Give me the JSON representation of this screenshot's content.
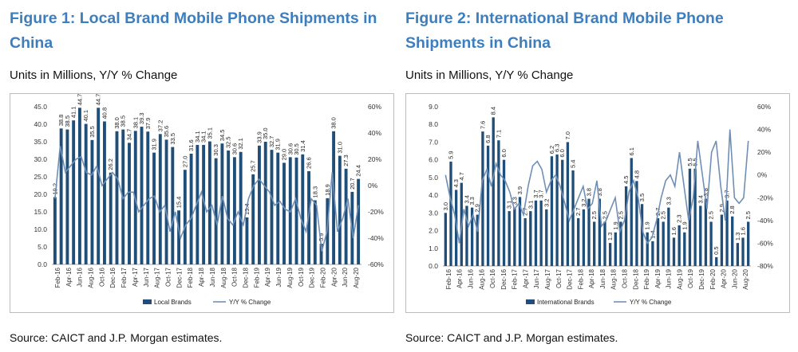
{
  "charts": [
    {
      "title": "Figure 1: Local Brand Mobile Phone Shipments in China",
      "subtitle": "Units in Millions, Y/Y % Change",
      "source": "Source: CAICT and J.P. Morgan estimates.",
      "chart_data": {
        "type": "bar",
        "x_tick_labels": [
          "Feb-16",
          "Apr-16",
          "Jun-16",
          "Aug-16",
          "Oct-16",
          "Dec-16",
          "Feb-17",
          "Apr-17",
          "Jun-17",
          "Aug-17",
          "Oct-17",
          "Dec-17",
          "Feb-18",
          "Apr-18",
          "Jun-18",
          "Aug-18",
          "Oct-18",
          "Dec-18",
          "Feb-19",
          "Apr-19",
          "Jun-19",
          "Aug-19",
          "Oct-19",
          "Dec-19",
          "Feb-20",
          "Apr-20",
          "Jun-20",
          "Aug-20"
        ],
        "y_left_range": [
          0,
          45
        ],
        "y_left_ticks": [
          "0.0",
          "5.0",
          "10.0",
          "15.0",
          "20.0",
          "25.0",
          "30.0",
          "35.0",
          "40.0",
          "45.0"
        ],
        "y_right_range": [
          -60,
          60
        ],
        "y_right_ticks": [
          "-60%",
          "-40%",
          "-20%",
          "0%",
          "20%",
          "40%",
          "60%"
        ],
        "series": [
          {
            "name": "Local Brands",
            "type": "bar",
            "color": "#1f4e79",
            "values": [
              19.2,
              38.8,
              38.5,
              41.1,
              44.7,
              40.1,
              35.5,
              44.7,
              40.8,
              26.2,
              38.0,
              38.5,
              34.7,
              38.1,
              39.3,
              37.9,
              31.9,
              37.2,
              35.6,
              33.5,
              15.4,
              27.0,
              31.6,
              34.1,
              34.1,
              35.1,
              30.3,
              34.5,
              32.5,
              30.6,
              32.1,
              13.4,
              25.7,
              33.9,
              35.0,
              32.7,
              31.9,
              29.0,
              30.6,
              30.5,
              31.4,
              26.6,
              18.3,
              5.9,
              18.9,
              38.0,
              31.0,
              27.3,
              20.7,
              24.4
            ],
            "labels": [
              "19.2",
              "38.8",
              "38.5",
              "41.1",
              "44.7",
              "40.1",
              "35.5",
              "44.7",
              "40.8",
              "26.2",
              "38.0",
              "38.5",
              "34.7",
              "38.1",
              "39.3",
              "37.9",
              "31.9",
              "37.2",
              "35.6",
              "33.5",
              "15.4",
              "27.0",
              "31.6",
              "34.1",
              "34.1",
              "35.1",
              "30.3",
              "34.5",
              "32.5",
              "30.6",
              "32.1",
              "13.4",
              "25.7",
              "33.9",
              "35.0",
              "32.7",
              "31.9",
              "29.0",
              "30.6",
              "30.5",
              "31.4",
              "26.6",
              "18.3",
              "5.9",
              "18.9",
              "38.0",
              "31.0",
              "27.3",
              "20.7",
              "24.4"
            ]
          },
          {
            "name": "Y/Y % Change",
            "type": "line",
            "color": "#6f8fb6",
            "axis": "right",
            "values": [
              -10,
              30,
              10,
              15,
              20,
              22,
              10,
              8,
              15,
              0,
              5,
              10,
              5,
              -10,
              -5,
              -5,
              -20,
              -15,
              -10,
              -8,
              -20,
              -15,
              -35,
              -20,
              -40,
              -30,
              -25,
              -15,
              -5,
              -20,
              -15,
              -30,
              -8,
              -25,
              -30,
              -20,
              -30,
              -10,
              0,
              5,
              0,
              -5,
              -15,
              -12,
              -18,
              -20,
              -10,
              -25,
              -35,
              -10,
              -15,
              -50,
              -35,
              10,
              -35,
              -25,
              -10,
              -40,
              -15
            ]
          }
        ]
      }
    },
    {
      "title": "Figure 2: International Brand Mobile Phone Shipments in China",
      "subtitle": "Units in Millions, Y/Y % Change",
      "source": "Source: CAICT and J.P. Morgan estimates.",
      "chart_data": {
        "type": "bar",
        "x_tick_labels": [
          "Feb-16",
          "Apr-16",
          "Jun-16",
          "Aug-16",
          "Oct-16",
          "Dec-16",
          "Feb-17",
          "Apr-17",
          "Jun-17",
          "Aug-17",
          "Oct-17",
          "Dec-17",
          "Feb-18",
          "Apr-18",
          "Jun-18",
          "Aug-18",
          "Oct-18",
          "Dec-18",
          "Feb-19",
          "Apr-19",
          "Jun-19",
          "Aug-19",
          "Oct-19",
          "Dec-19",
          "Feb-20",
          "Apr-20",
          "Jun-20",
          "Aug-20"
        ],
        "y_left_range": [
          0,
          9
        ],
        "y_left_ticks": [
          "0.0",
          "1.0",
          "2.0",
          "3.0",
          "4.0",
          "5.0",
          "6.0",
          "7.0",
          "8.0",
          "9.0"
        ],
        "y_right_range": [
          -80,
          60
        ],
        "y_right_ticks": [
          "-80%",
          "-60%",
          "-40%",
          "-20%",
          "0%",
          "20%",
          "40%",
          "60%"
        ],
        "series": [
          {
            "name": "International Brands",
            "type": "bar",
            "color": "#1f4e79",
            "values": [
              3.0,
              5.9,
              4.3,
              4.7,
              3.4,
              3.3,
              2.9,
              7.6,
              6.8,
              8.4,
              7.1,
              6.0,
              3.1,
              3.3,
              3.9,
              2.7,
              3.1,
              3.7,
              3.7,
              3.2,
              6.2,
              6.3,
              6.0,
              7.0,
              5.4,
              2.7,
              3.2,
              3.8,
              2.5,
              3.8,
              2.5,
              1.3,
              1.9,
              2.5,
              4.5,
              6.1,
              4.8,
              3.5,
              1.9,
              1.4,
              2.7,
              2.5,
              3.3,
              1.6,
              2.3,
              1.9,
              5.5,
              5.5,
              3.4,
              3.8,
              2.5,
              0.5,
              2.9,
              3.7,
              2.8,
              1.3,
              1.6,
              2.5
            ],
            "labels": [
              "3.0",
              "5.9",
              "4.3",
              "4.7",
              "3.4",
              "3.3",
              "2.9",
              "7.6",
              "6.8",
              "8.4",
              "7.1",
              "6.0",
              "3.1",
              "3.3",
              "3.9",
              "2.7",
              "3.1",
              "3.7",
              "3.7",
              "3.2",
              "6.2",
              "6.3",
              "6.0",
              "7.0",
              "5.4",
              "2.7",
              "3.2",
              "3.8",
              "2.5",
              "3.8",
              "2.5",
              "1.3",
              "1.9",
              "2.5",
              "4.5",
              "6.1",
              "4.8",
              "3.5",
              "1.9",
              "1.4",
              "2.7",
              "2.5",
              "3.3",
              "1.6",
              "2.3",
              "1.9",
              "5.5",
              "5.5",
              "3.4",
              "3.8",
              "2.5",
              "0.5",
              "2.9",
              "3.7",
              "2.8",
              "1.3",
              "1.6",
              "2.5"
            ]
          },
          {
            "name": "Y/Y % Change",
            "type": "line",
            "color": "#6f8fb6",
            "axis": "right",
            "values": [
              0,
              -20,
              -35,
              -60,
              -30,
              -45,
              -35,
              -50,
              -5,
              5,
              -10,
              10,
              0,
              -5,
              -15,
              -30,
              -25,
              -35,
              -10,
              8,
              12,
              5,
              -15,
              -5,
              0,
              -10,
              -25,
              -40,
              -30,
              -20,
              -10,
              -30,
              -25,
              -5,
              -45,
              -40,
              -30,
              -20,
              -50,
              -40,
              -15,
              -5,
              -20,
              -50,
              -60,
              -55,
              -40,
              -20,
              -5,
              0,
              -10,
              20,
              -10,
              -40,
              -20,
              30,
              0,
              -30,
              20,
              30,
              -10,
              -40,
              40,
              -20,
              -25,
              -20,
              30
            ]
          }
        ]
      }
    }
  ],
  "legend_colors": {
    "bar": "#1f4e79",
    "line": "#6f8fb6",
    "title": "#3d7ebf"
  }
}
